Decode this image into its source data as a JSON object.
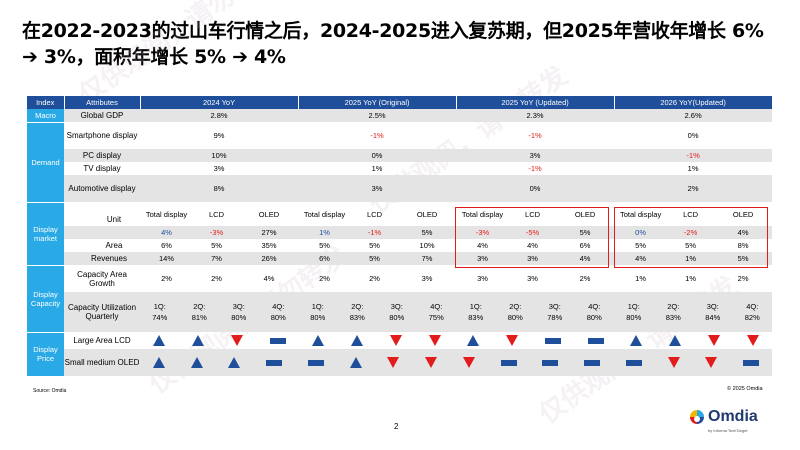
{
  "title": "在2022-2023的过山车行情之后，2024-2025进入复苏期，但2025年营收年增长 6% ➔ 3%，面积年增长 5% ➔ 4%",
  "watermark": "仅供观阅，请勿转发",
  "headers": [
    "Index",
    "Attributes",
    "2024 YoY",
    "2025 YoY (Original)",
    "2025 YoY (Updated)",
    "2026 YoY(Updated)"
  ],
  "macro": {
    "index": "Macro",
    "attr": "Global GDP",
    "values": [
      "2.8%",
      "2.5%",
      "2.3%",
      "2.6%"
    ]
  },
  "demand": {
    "index": "Demand",
    "rows": [
      {
        "attr": "Smartphone display",
        "values": [
          "9%",
          "-1%",
          "-1%",
          "0%"
        ],
        "red": [
          false,
          true,
          true,
          false
        ]
      },
      {
        "attr": "PC display",
        "values": [
          "10%",
          "0%",
          "3%",
          "-1%"
        ],
        "red": [
          false,
          false,
          false,
          true
        ]
      },
      {
        "attr": "TV display",
        "values": [
          "3%",
          "1%",
          "-1%",
          "1%"
        ],
        "red": [
          false,
          false,
          true,
          false
        ]
      },
      {
        "attr": "Automotive display",
        "values": [
          "8%",
          "3%",
          "0%",
          "2%"
        ],
        "red": [
          false,
          false,
          false,
          false
        ]
      }
    ]
  },
  "display_market": {
    "index": "Display market",
    "subheaders": [
      "Total display",
      "LCD",
      "OLED"
    ],
    "rows": [
      {
        "attr": "Unit",
        "values": [
          "4%",
          "-3%",
          "27%",
          "1%",
          "-1%",
          "5%",
          "-3%",
          "-5%",
          "5%",
          "0%",
          "-2%",
          "4%"
        ],
        "red": [
          false,
          true,
          false,
          false,
          true,
          false,
          true,
          true,
          false,
          false,
          true,
          false
        ],
        "blue": [
          true,
          false,
          false,
          true,
          false,
          false,
          false,
          false,
          false,
          true,
          false,
          false
        ]
      },
      {
        "attr": "Area",
        "values": [
          "6%",
          "5%",
          "35%",
          "5%",
          "5%",
          "10%",
          "4%",
          "4%",
          "6%",
          "5%",
          "5%",
          "8%"
        ]
      },
      {
        "attr": "Revenues",
        "values": [
          "14%",
          "7%",
          "26%",
          "6%",
          "5%",
          "7%",
          "3%",
          "3%",
          "4%",
          "4%",
          "1%",
          "5%"
        ]
      }
    ]
  },
  "display_capacity": {
    "index": "Display Capacity",
    "growth": {
      "attr": "Capacity Area Growth",
      "values": [
        "2%",
        "2%",
        "4%",
        "2%",
        "2%",
        "3%",
        "3%",
        "3%",
        "2%",
        "1%",
        "1%",
        "2%"
      ]
    },
    "utilization": {
      "attr": "Capacity Utilization Quarterly",
      "quarters": [
        "1Q:",
        "2Q:",
        "3Q:",
        "4Q:",
        "1Q:",
        "2Q:",
        "3Q:",
        "4Q:",
        "1Q:",
        "2Q:",
        "3Q:",
        "4Q:",
        "1Q:",
        "2Q:",
        "3Q:",
        "4Q:"
      ],
      "values": [
        "74%",
        "81%",
        "80%",
        "80%",
        "80%",
        "83%",
        "80%",
        "75%",
        "83%",
        "80%",
        "78%",
        "80%",
        "80%",
        "83%",
        "84%",
        "82%"
      ]
    }
  },
  "display_price": {
    "index": "Display Price",
    "rows": [
      {
        "attr": "Large Area LCD",
        "trend": [
          "up",
          "up",
          "down",
          "flat",
          "up",
          "up",
          "down",
          "down",
          "up",
          "down",
          "flat",
          "flat",
          "up",
          "up",
          "down",
          "down"
        ]
      },
      {
        "attr": "Small medium OLED",
        "trend": [
          "up",
          "up",
          "up",
          "flat",
          "flat",
          "up",
          "down",
          "down",
          "down",
          "flat",
          "flat",
          "flat",
          "flat",
          "down",
          "down",
          "flat"
        ]
      }
    ]
  },
  "source": "Source: Omdia",
  "copyright": "© 2025 Omdia",
  "page_number": "2",
  "logo": {
    "name": "Omdia",
    "tagline": "by Informa TechTarget"
  },
  "colors": {
    "header": "#1f4e9a",
    "index": "#29a9e6",
    "negative": "#e21b1b",
    "row_alt": "#e4e4e4"
  }
}
